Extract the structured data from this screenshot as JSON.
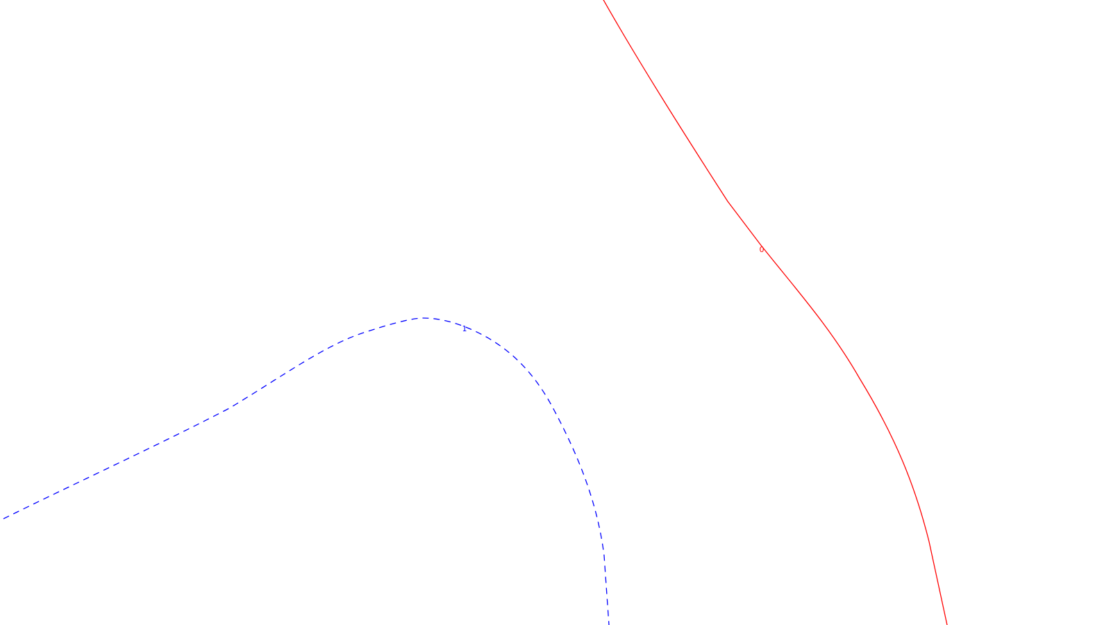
{
  "chart_data": {
    "type": "line",
    "title": "",
    "xlabel": "",
    "ylabel": "",
    "colors": {
      "background": "#ffffff",
      "contour_0": "#ff0000",
      "contour_1": "#0000ff"
    },
    "series": [
      {
        "label": "0",
        "style": "solid",
        "color": "#ff0000"
      },
      {
        "label": "1",
        "style": "dashed",
        "color": "#0000ff"
      }
    ]
  }
}
